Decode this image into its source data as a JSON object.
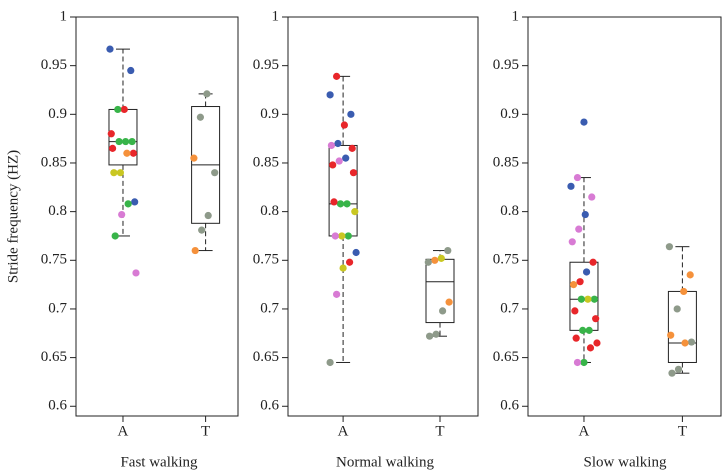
{
  "chart_data": [
    {
      "type": "box",
      "title": "Fast walking",
      "ylabel": "Stride frequency (HZ)",
      "categories": [
        "A",
        "T"
      ],
      "ylim": [
        0.59,
        1
      ],
      "yticks": [
        0.6,
        0.65,
        0.7,
        0.75,
        0.8,
        0.85,
        0.9,
        0.95,
        1
      ],
      "boxes": [
        {
          "min": 0.775,
          "q1": 0.848,
          "median": 0.872,
          "q3": 0.905,
          "max": 0.967,
          "points": [
            0.967,
            0.945,
            0.905,
            0.905,
            0.88,
            0.872,
            0.872,
            0.872,
            0.865,
            0.86,
            0.86,
            0.84,
            0.84,
            0.81,
            0.808,
            0.797,
            0.775,
            0.737
          ],
          "point_colors": [
            "#3a5cb0",
            "#3a5cb0",
            "#e8262a",
            "#38b449",
            "#e8262a",
            "#38b449",
            "#38b449",
            "#38b449",
            "#e8262a",
            "#e8262a",
            "#f5913b",
            "#c9c722",
            "#c9c722",
            "#3a5cb0",
            "#38b449",
            "#d87bd4",
            "#38b449",
            "#d87bd4"
          ]
        },
        {
          "min": 0.76,
          "q1": 0.788,
          "median": 0.848,
          "q3": 0.908,
          "max": 0.921,
          "points": [
            0.921,
            0.897,
            0.855,
            0.84,
            0.796,
            0.781,
            0.76
          ],
          "point_colors": [
            "#8e9a8a",
            "#8e9a8a",
            "#f5913b",
            "#8e9a8a",
            "#8e9a8a",
            "#8e9a8a",
            "#f5913b"
          ]
        }
      ]
    },
    {
      "type": "box",
      "title": "Normal walking",
      "categories": [
        "A",
        "T"
      ],
      "ylim": [
        0.59,
        1
      ],
      "yticks": [
        0.6,
        0.65,
        0.7,
        0.75,
        0.8,
        0.85,
        0.9,
        0.95,
        1
      ],
      "boxes": [
        {
          "min": 0.645,
          "q1": 0.775,
          "median": 0.808,
          "q3": 0.868,
          "max": 0.939,
          "points": [
            0.939,
            0.92,
            0.9,
            0.889,
            0.87,
            0.868,
            0.865,
            0.855,
            0.852,
            0.848,
            0.84,
            0.808,
            0.808,
            0.81,
            0.8,
            0.775,
            0.775,
            0.775,
            0.758,
            0.748,
            0.742,
            0.715,
            0.645
          ],
          "point_colors": [
            "#e8262a",
            "#3a5cb0",
            "#3a5cb0",
            "#e8262a",
            "#3a5cb0",
            "#d87bd4",
            "#e8262a",
            "#3a5cb0",
            "#d87bd4",
            "#e8262a",
            "#e8262a",
            "#38b449",
            "#38b449",
            "#e8262a",
            "#c9c722",
            "#38b449",
            "#c9c722",
            "#d87bd4",
            "#3a5cb0",
            "#e8262a",
            "#c9c722",
            "#d87bd4",
            "#8e9a8a"
          ]
        },
        {
          "min": 0.672,
          "q1": 0.686,
          "median": 0.728,
          "q3": 0.751,
          "max": 0.76,
          "points": [
            0.76,
            0.752,
            0.75,
            0.748,
            0.707,
            0.698,
            0.674,
            0.672
          ],
          "point_colors": [
            "#8e9a8a",
            "#c9c722",
            "#f5913b",
            "#8e9a8a",
            "#f5913b",
            "#8e9a8a",
            "#8e9a8a",
            "#8e9a8a"
          ]
        }
      ]
    },
    {
      "type": "box",
      "title": "Slow walking",
      "categories": [
        "A",
        "T"
      ],
      "ylim": [
        0.59,
        1
      ],
      "yticks": [
        0.6,
        0.65,
        0.7,
        0.75,
        0.8,
        0.85,
        0.9,
        0.95,
        1
      ],
      "boxes": [
        {
          "min": 0.645,
          "q1": 0.678,
          "median": 0.71,
          "q3": 0.748,
          "max": 0.835,
          "points": [
            0.892,
            0.835,
            0.826,
            0.815,
            0.797,
            0.782,
            0.769,
            0.748,
            0.738,
            0.728,
            0.725,
            0.71,
            0.71,
            0.71,
            0.698,
            0.69,
            0.678,
            0.678,
            0.67,
            0.665,
            0.66,
            0.645,
            0.645
          ],
          "point_colors": [
            "#3a5cb0",
            "#d87bd4",
            "#3a5cb0",
            "#d87bd4",
            "#3a5cb0",
            "#d87bd4",
            "#d87bd4",
            "#e8262a",
            "#3a5cb0",
            "#e8262a",
            "#f5913b",
            "#38b449",
            "#c9c722",
            "#38b449",
            "#e8262a",
            "#e8262a",
            "#38b449",
            "#38b449",
            "#e8262a",
            "#e8262a",
            "#e8262a",
            "#38b449",
            "#d87bd4"
          ]
        },
        {
          "min": 0.634,
          "q1": 0.645,
          "median": 0.665,
          "q3": 0.718,
          "max": 0.764,
          "points": [
            0.764,
            0.735,
            0.718,
            0.7,
            0.673,
            0.666,
            0.665,
            0.638,
            0.634
          ],
          "point_colors": [
            "#8e9a8a",
            "#f5913b",
            "#f5913b",
            "#8e9a8a",
            "#f5913b",
            "#8e9a8a",
            "#f5913b",
            "#8e9a8a",
            "#8e9a8a"
          ]
        }
      ]
    }
  ]
}
